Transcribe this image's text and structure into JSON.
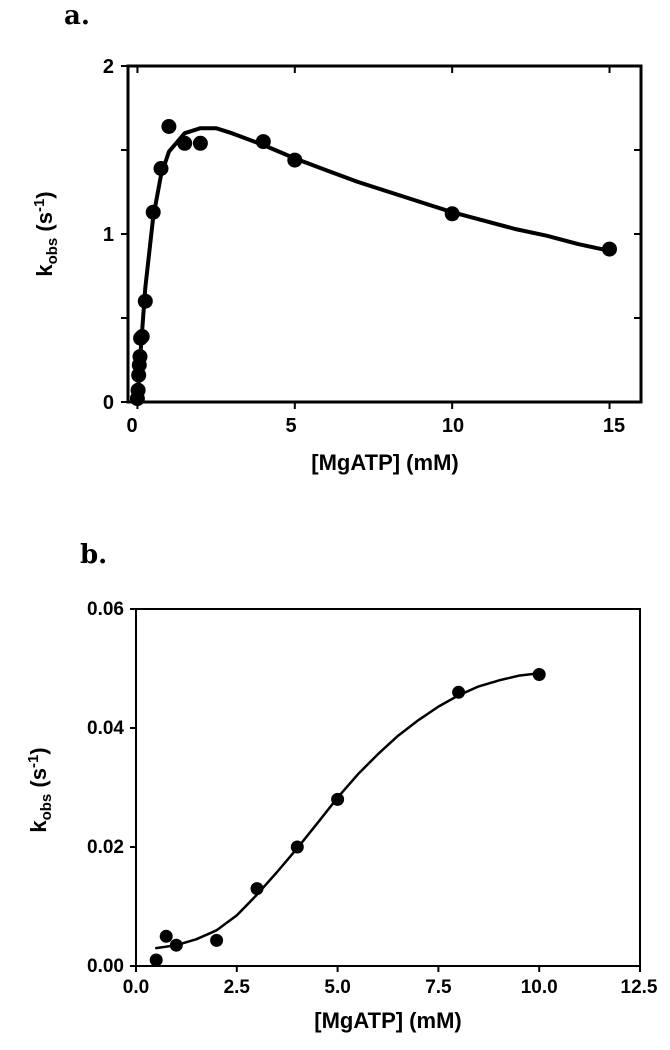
{
  "chart_data": [
    {
      "panel": "a.",
      "type": "scatter",
      "xlabel": "[MgATP] (mM)",
      "ylabel": {
        "main": "k",
        "sub": "obs",
        "unit_open": " (s",
        "unit_sup": "-1",
        "unit_close": ")"
      },
      "xlim": [
        -0.3,
        16
      ],
      "ylim": [
        0,
        2
      ],
      "xticks": [
        0,
        5,
        10,
        15
      ],
      "xtick_labels": [
        "0",
        "5",
        "10",
        "15"
      ],
      "yticks": [
        0,
        1,
        2
      ],
      "ytick_labels": [
        "0",
        "1",
        "2"
      ],
      "grid": false,
      "points": {
        "x": [
          0,
          0.02,
          0.04,
          0.06,
          0.08,
          0.1,
          0.15,
          0.25,
          0.5,
          0.75,
          1,
          1.5,
          2,
          4,
          5,
          10,
          15
        ],
        "y": [
          0.02,
          0.07,
          0.16,
          0.22,
          0.27,
          0.38,
          0.39,
          0.6,
          1.13,
          1.39,
          1.64,
          1.54,
          1.54,
          1.55,
          1.44,
          1.12,
          0.91
        ]
      },
      "fit_curve": {
        "x": [
          0,
          0.1,
          0.25,
          0.5,
          0.75,
          1,
          1.5,
          2,
          2.5,
          3,
          4,
          5,
          6,
          7,
          8,
          9,
          10,
          11,
          12,
          13,
          14,
          15
        ],
        "y": [
          0,
          0.3,
          0.68,
          1.1,
          1.35,
          1.49,
          1.6,
          1.63,
          1.63,
          1.6,
          1.53,
          1.45,
          1.38,
          1.31,
          1.25,
          1.19,
          1.13,
          1.08,
          1.03,
          0.99,
          0.94,
          0.9
        ]
      }
    },
    {
      "panel": "b.",
      "type": "scatter",
      "xlabel": "[MgATP] (mM)",
      "ylabel": {
        "main": "k",
        "sub": "obs",
        "unit_open": " (s",
        "unit_sup": "-1",
        "unit_close": ")"
      },
      "xlim": [
        0,
        12.5
      ],
      "ylim": [
        0,
        0.06
      ],
      "xticks": [
        0,
        2.5,
        5,
        7.5,
        10,
        12.5
      ],
      "xtick_labels": [
        "0.0",
        "2.5",
        "5.0",
        "7.5",
        "10.0",
        "12.5"
      ],
      "yticks": [
        0,
        0.02,
        0.04,
        0.06
      ],
      "ytick_labels": [
        "0.00",
        "0.02",
        "0.04",
        "0.06"
      ],
      "grid": false,
      "points": {
        "x": [
          0.5,
          0.75,
          1,
          2,
          3,
          4,
          5,
          8,
          10
        ],
        "y": [
          0.001,
          0.005,
          0.0035,
          0.0043,
          0.013,
          0.02,
          0.028,
          0.046,
          0.049
        ]
      },
      "fit_curve": {
        "x": [
          0.5,
          1,
          1.5,
          2,
          2.5,
          3,
          3.5,
          4,
          4.5,
          5,
          5.5,
          6,
          6.5,
          7,
          7.5,
          8,
          8.5,
          9,
          9.5,
          10
        ],
        "y": [
          0.003,
          0.0035,
          0.0045,
          0.006,
          0.0085,
          0.012,
          0.0158,
          0.0198,
          0.024,
          0.0283,
          0.0322,
          0.0356,
          0.0387,
          0.0413,
          0.0436,
          0.0455,
          0.047,
          0.048,
          0.0488,
          0.0492
        ]
      }
    }
  ]
}
